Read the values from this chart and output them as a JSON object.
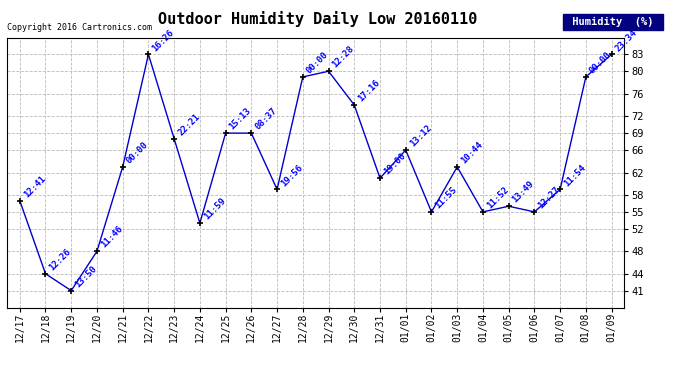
{
  "title": "Outdoor Humidity Daily Low 20160110",
  "copyright": "Copyright 2016 Cartronics.com",
  "legend_label": "Humidity  (%)",
  "x_labels": [
    "12/17",
    "12/18",
    "12/19",
    "12/20",
    "12/21",
    "12/22",
    "12/23",
    "12/24",
    "12/25",
    "12/26",
    "12/27",
    "12/28",
    "12/29",
    "12/30",
    "12/31",
    "01/01",
    "01/02",
    "01/03",
    "01/04",
    "01/05",
    "01/06",
    "01/07",
    "01/08",
    "01/09"
  ],
  "y_values": [
    57,
    44,
    41,
    48,
    63,
    83,
    68,
    53,
    69,
    69,
    59,
    79,
    80,
    74,
    61,
    66,
    55,
    63,
    55,
    56,
    55,
    59,
    79,
    83
  ],
  "point_labels": [
    "12:41",
    "12:26",
    "13:50",
    "11:46",
    "00:00",
    "16:26",
    "22:21",
    "11:59",
    "15:13",
    "08:37",
    "19:56",
    "00:00",
    "12:28",
    "17:16",
    "19:00",
    "13:12",
    "11:55",
    "10:44",
    "11:52",
    "13:49",
    "12:27",
    "11:54",
    "00:00",
    "23:34"
  ],
  "y_ticks": [
    41,
    44,
    48,
    52,
    55,
    58,
    62,
    66,
    69,
    72,
    76,
    80,
    83
  ],
  "line_color": "#0000cc",
  "marker_color": "#000000",
  "background_color": "#ffffff",
  "grid_color": "#bbbbbb",
  "title_fontsize": 11,
  "label_color": "#0000ff",
  "legend_bg": "#000080",
  "legend_text_color": "#ffffff",
  "ylim_min": 38,
  "ylim_max": 86
}
